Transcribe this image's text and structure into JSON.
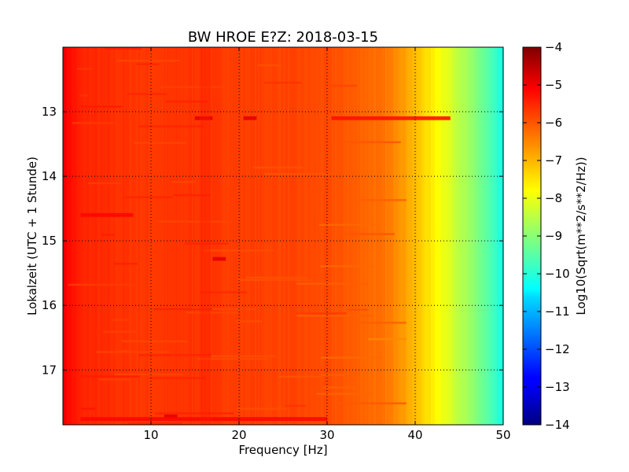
{
  "chart_data": {
    "type": "heatmap",
    "title": "BW HROE E?Z: 2018-03-15",
    "xlabel": "Frequency [Hz]",
    "ylabel": "Lokalzeit (UTC + 1 Stunde)",
    "colorbar_label": "Log10(Sqrt(m**2/s**2/Hz))",
    "colormap": "jet",
    "xlim": [
      0,
      50
    ],
    "ylim": [
      12.0,
      17.85
    ],
    "y_inverted": true,
    "x_ticks": [
      10,
      20,
      30,
      40,
      50
    ],
    "x_tick_labels": [
      "10",
      "20",
      "30",
      "40",
      "50"
    ],
    "y_ticks": [
      13,
      14,
      15,
      16,
      17
    ],
    "y_tick_labels": [
      "13",
      "14",
      "15",
      "16",
      "17"
    ],
    "clim": [
      -14,
      -4
    ],
    "colorbar_ticks": [
      -4,
      -5,
      -6,
      -7,
      -8,
      -9,
      -10,
      -11,
      -12,
      -13,
      -14
    ],
    "colorbar_tick_labels": [
      "−4",
      "−5",
      "−6",
      "−7",
      "−8",
      "−9",
      "−10",
      "−11",
      "−12",
      "−13",
      "−14"
    ],
    "grid": true,
    "grid_style": "dotted",
    "spectrum_profile": {
      "frequency_hz": [
        0,
        0.5,
        2,
        5,
        10,
        15,
        20,
        25,
        30,
        33,
        36,
        38,
        40,
        42,
        44,
        46,
        48,
        50
      ],
      "log10_amplitude": [
        -5.0,
        -5.3,
        -5.6,
        -5.7,
        -5.8,
        -5.75,
        -5.85,
        -5.9,
        -6.0,
        -6.15,
        -6.35,
        -6.6,
        -7.1,
        -7.6,
        -8.1,
        -8.7,
        -9.3,
        -10.1
      ]
    },
    "bright_spots": [
      {
        "frequency_hz": [
          15,
          17
        ],
        "time_h": 13.1,
        "log10_amplitude": -5.0
      },
      {
        "frequency_hz": [
          20.5,
          22
        ],
        "time_h": 13.1,
        "log10_amplitude": -5.0
      },
      {
        "frequency_hz": [
          17,
          18.5
        ],
        "time_h": 15.28,
        "log10_amplitude": -5.0
      },
      {
        "frequency_hz": [
          11.5,
          13
        ],
        "time_h": 17.72,
        "log10_amplitude": -5.0
      },
      {
        "frequency_hz": [
          30.5,
          44
        ],
        "time_h": 13.1,
        "log10_amplitude": -5.4
      },
      {
        "frequency_hz": [
          2,
          8
        ],
        "time_h": 14.6,
        "log10_amplitude": -5.3
      },
      {
        "frequency_hz": [
          2,
          30
        ],
        "time_h": 17.76,
        "log10_amplitude": -5.3
      },
      {
        "frequency_hz": [
          15.5,
          16.8
        ],
        "time_h": [
          12.0,
          17.85
        ],
        "log10_amplitude": -5.5
      }
    ]
  }
}
